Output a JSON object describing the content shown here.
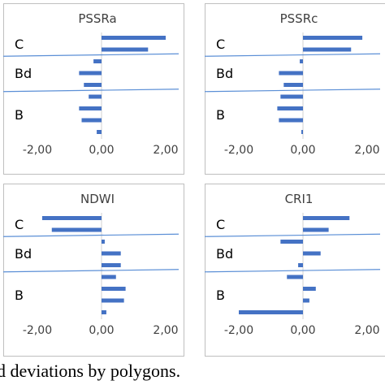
{
  "caption": "d deviations by polygons.",
  "colors": {
    "bar": "#4472c4",
    "separator": "#5b8fd6",
    "frame": "#bfbfbf",
    "axis": "#d0d0d0",
    "text": "#404040",
    "group_text": "#000000"
  },
  "chart_data": [
    {
      "type": "bar",
      "title": "PSSRa",
      "orientation": "horizontal",
      "xlim": [
        -2.0,
        2.0
      ],
      "x_ticks": [
        "-2,00",
        "0,00",
        "2,00"
      ],
      "groups": [
        "C",
        "Bd",
        "B"
      ],
      "series": [
        {
          "group": "C",
          "values": [
            2.0,
            1.45
          ]
        },
        {
          "group": "Bd",
          "values": [
            -0.25,
            -0.7,
            -0.55
          ]
        },
        {
          "group": "B",
          "values": [
            -0.4,
            -0.7,
            -0.62,
            -0.15
          ]
        }
      ]
    },
    {
      "type": "bar",
      "title": "PSSRc",
      "orientation": "horizontal",
      "xlim": [
        -2.0,
        2.0
      ],
      "x_ticks": [
        "-2,00",
        "0,00",
        "2,00"
      ],
      "groups": [
        "C",
        "Bd",
        "B"
      ],
      "series": [
        {
          "group": "C",
          "values": [
            1.85,
            1.5
          ]
        },
        {
          "group": "Bd",
          "values": [
            -0.1,
            -0.75,
            -0.6
          ]
        },
        {
          "group": "B",
          "values": [
            -0.7,
            -0.8,
            -0.75,
            -0.05
          ]
        }
      ]
    },
    {
      "type": "bar",
      "title": "NDWI",
      "orientation": "horizontal",
      "xlim": [
        -2.0,
        2.0
      ],
      "x_ticks": [
        "-2,00",
        "0,00",
        "2,00"
      ],
      "groups": [
        "C",
        "Bd",
        "B"
      ],
      "series": [
        {
          "group": "C",
          "values": [
            -1.85,
            -1.55
          ]
        },
        {
          "group": "Bd",
          "values": [
            0.1,
            0.6,
            0.6
          ]
        },
        {
          "group": "B",
          "values": [
            0.45,
            0.75,
            0.7,
            0.15
          ]
        }
      ]
    },
    {
      "type": "bar",
      "title": "CRI1",
      "orientation": "horizontal",
      "xlim": [
        -2.0,
        2.0
      ],
      "x_ticks": [
        "-2,00",
        "0,00",
        "2,00"
      ],
      "groups": [
        "C",
        "Bd",
        "B"
      ],
      "series": [
        {
          "group": "C",
          "values": [
            1.45,
            0.8
          ]
        },
        {
          "group": "Bd",
          "values": [
            -0.7,
            0.55,
            -0.15
          ]
        },
        {
          "group": "B",
          "values": [
            -0.5,
            0.4,
            0.2,
            -2.0
          ]
        }
      ]
    }
  ]
}
